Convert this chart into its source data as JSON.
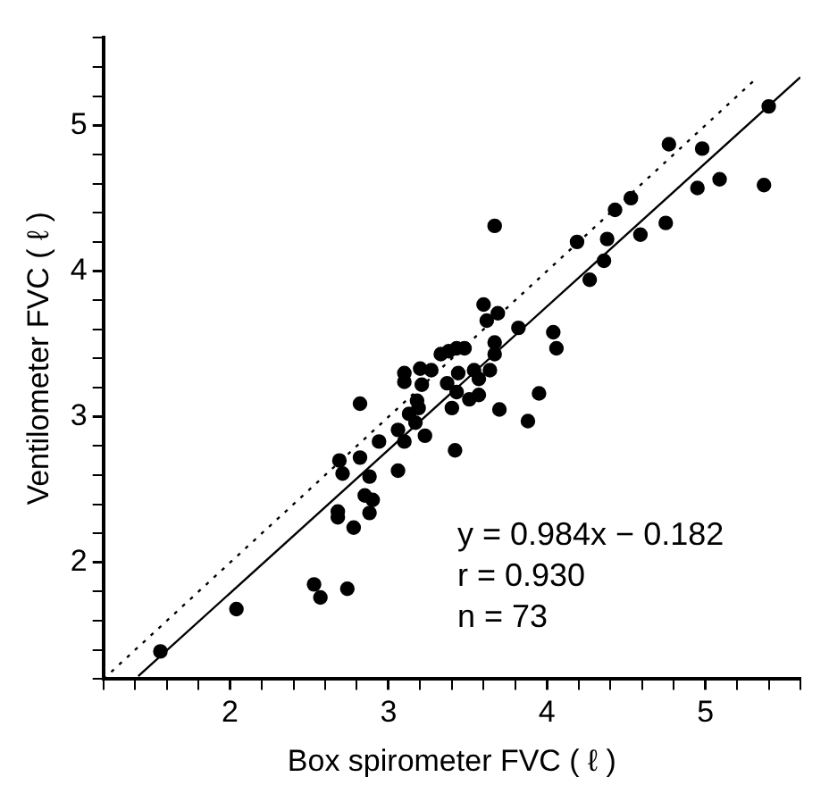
{
  "chart_data": {
    "type": "scatter",
    "xlabel": "Box spirometer FVC ( ℓ )",
    "ylabel": "Ventilometer FVC ( ℓ )",
    "annotations": [
      "y = 0.984x − 0.182",
      "r = 0.930",
      "n = 73"
    ],
    "xlim": [
      1.2,
      5.6
    ],
    "ylim": [
      1.2,
      5.6
    ],
    "xticks": [
      {
        "value": 1.2,
        "label": null
      },
      {
        "value": 1.4,
        "label": null
      },
      {
        "value": 1.6,
        "label": null
      },
      {
        "value": 1.8,
        "label": null
      },
      2,
      {
        "value": 2.2,
        "label": null
      },
      {
        "value": 2.4,
        "label": null
      },
      {
        "value": 2.6,
        "label": null
      },
      {
        "value": 2.8,
        "label": null
      },
      3,
      {
        "value": 3.2,
        "label": null
      },
      {
        "value": 3.4,
        "label": null
      },
      {
        "value": 3.6,
        "label": null
      },
      {
        "value": 3.8,
        "label": null
      },
      4,
      {
        "value": 4.2,
        "label": null
      },
      {
        "value": 4.4,
        "label": null
      },
      {
        "value": 4.6,
        "label": null
      },
      {
        "value": 4.8,
        "label": null
      },
      5,
      {
        "value": 5.2,
        "label": null
      },
      {
        "value": 5.4,
        "label": null
      },
      {
        "value": 5.6,
        "label": null
      }
    ],
    "yticks": [
      {
        "value": 1.2,
        "label": null
      },
      {
        "value": 1.4,
        "label": null
      },
      {
        "value": 1.6,
        "label": null
      },
      {
        "value": 1.8,
        "label": null
      },
      2,
      {
        "value": 2.2,
        "label": null
      },
      {
        "value": 2.4,
        "label": null
      },
      {
        "value": 2.6,
        "label": null
      },
      {
        "value": 2.8,
        "label": null
      },
      3,
      {
        "value": 3.2,
        "label": null
      },
      {
        "value": 3.4,
        "label": null
      },
      {
        "value": 3.6,
        "label": null
      },
      {
        "value": 3.8,
        "label": null
      },
      4,
      {
        "value": 4.2,
        "label": null
      },
      {
        "value": 4.4,
        "label": null
      },
      {
        "value": 4.6,
        "label": null
      },
      {
        "value": 4.8,
        "label": null
      },
      5,
      {
        "value": 5.2,
        "label": null
      },
      {
        "value": 5.4,
        "label": null
      },
      {
        "value": 5.6,
        "label": null
      }
    ],
    "grid": false,
    "marker": "circle",
    "series": [
      {
        "color": "#000000",
        "x": [
          1.56,
          2.04,
          2.53,
          2.57,
          2.74,
          2.69,
          2.71,
          2.68,
          2.68,
          2.78,
          2.82,
          2.82,
          2.85,
          2.88,
          2.9,
          2.88,
          2.94,
          3.06,
          3.06,
          3.1,
          3.1,
          3.1,
          3.13,
          3.17,
          3.18,
          3.19,
          3.2,
          3.21,
          3.23,
          3.27,
          3.33,
          3.38,
          3.43,
          3.48,
          3.37,
          3.44,
          3.43,
          3.4,
          3.42,
          3.51,
          3.54,
          3.57,
          3.57,
          3.64,
          3.6,
          3.62,
          3.67,
          3.67,
          3.67,
          3.69,
          3.7,
          3.82,
          3.88,
          3.95,
          4.04,
          4.06,
          4.19,
          4.27,
          4.36,
          4.38,
          4.43,
          4.53,
          4.59,
          4.75,
          4.77,
          4.95,
          4.98,
          5.09,
          5.37,
          5.4
        ],
        "values": [
          1.39,
          1.68,
          1.85,
          1.76,
          1.82,
          2.7,
          2.61,
          2.35,
          2.31,
          2.24,
          3.09,
          2.72,
          2.46,
          2.59,
          2.43,
          2.34,
          2.83,
          2.91,
          2.63,
          2.83,
          3.3,
          3.24,
          3.02,
          2.96,
          3.11,
          3.06,
          3.33,
          3.22,
          2.87,
          3.32,
          3.43,
          3.45,
          3.47,
          3.47,
          3.23,
          3.3,
          3.17,
          3.06,
          2.77,
          3.12,
          3.32,
          3.26,
          3.15,
          3.32,
          3.77,
          3.66,
          4.31,
          3.51,
          3.43,
          3.71,
          3.05,
          3.61,
          2.97,
          3.16,
          3.58,
          3.47,
          4.2,
          3.94,
          4.07,
          4.22,
          4.42,
          4.5,
          4.25,
          4.33,
          4.87,
          4.57,
          4.84,
          4.63,
          4.59,
          5.13
        ]
      },
      {
        "type": "line",
        "marker": "none",
        "color": "#000000",
        "line_style": "dotted",
        "x": [
          1.2,
          5.3
        ],
        "values": [
          1.2,
          5.3
        ]
      },
      {
        "type": "line",
        "marker": "none",
        "color": "#000000",
        "line_style": "solid",
        "x": [
          1.42,
          5.6
        ],
        "values": [
          1.22,
          5.33
        ]
      }
    ]
  }
}
